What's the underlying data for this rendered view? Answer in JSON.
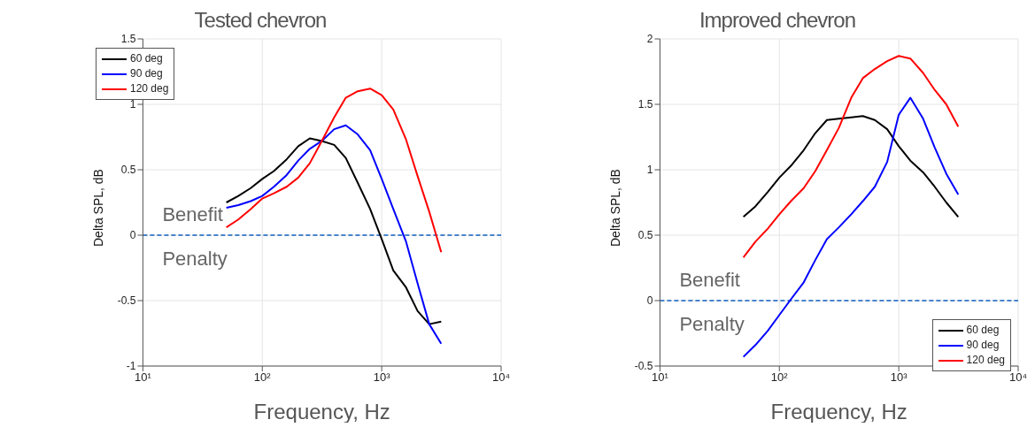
{
  "chart_data": [
    {
      "type": "line",
      "title": "Tested chevron",
      "xlabel": "Frequency, Hz",
      "ylabel": "Delta SPL, dB",
      "log": "x",
      "grid": true,
      "legend": "top left",
      "xlim": [
        10,
        10000
      ],
      "xticks": [
        {
          "value": 10,
          "label": "10¹"
        },
        {
          "value": 100,
          "label": "10²"
        },
        {
          "value": 1000,
          "label": "10³"
        },
        {
          "value": 10000,
          "label": "10⁴"
        }
      ],
      "ylim": [
        -1,
        1.5
      ],
      "yticks": [
        -1,
        -0.5,
        0,
        0.5,
        1,
        1.5
      ],
      "x": [
        50,
        63,
        80,
        100,
        125,
        160,
        200,
        250,
        315,
        400,
        500,
        630,
        800,
        1000,
        1250,
        1600,
        2000,
        2500,
        3150
      ],
      "series": [
        {
          "name": "60 deg",
          "color": "#000000",
          "values": [
            0.25,
            0.3,
            0.36,
            0.43,
            0.49,
            0.58,
            0.68,
            0.74,
            0.72,
            0.69,
            0.59,
            0.4,
            0.2,
            -0.03,
            -0.27,
            -0.4,
            -0.58,
            -0.68,
            -0.66
          ]
        },
        {
          "name": "90 deg",
          "color": "#0000ff",
          "values": [
            0.21,
            0.23,
            0.26,
            0.3,
            0.37,
            0.46,
            0.57,
            0.66,
            0.72,
            0.81,
            0.84,
            0.77,
            0.65,
            0.43,
            0.2,
            -0.05,
            -0.37,
            -0.68,
            -0.83
          ]
        },
        {
          "name": "120 deg",
          "color": "#ff0000",
          "values": [
            0.06,
            0.12,
            0.2,
            0.28,
            0.32,
            0.37,
            0.44,
            0.55,
            0.72,
            0.9,
            1.05,
            1.1,
            1.12,
            1.07,
            0.96,
            0.73,
            0.45,
            0.18,
            -0.13
          ]
        }
      ],
      "ref_lines": [
        {
          "axis": "y",
          "value": 0,
          "color": "#1060c0",
          "line_style": "dashed"
        }
      ],
      "annotations": [
        "Benefit",
        "Penalty"
      ]
    },
    {
      "type": "line",
      "title": "Improved chevron",
      "xlabel": "Frequency, Hz",
      "ylabel": "Delta SPL, dB",
      "log": "x",
      "grid": true,
      "legend": "bottom right",
      "xlim": [
        10,
        10000
      ],
      "xticks": [
        {
          "value": 10,
          "label": "10¹"
        },
        {
          "value": 100,
          "label": "10²"
        },
        {
          "value": 1000,
          "label": "10³"
        },
        {
          "value": 10000,
          "label": "10⁴"
        }
      ],
      "ylim": [
        -0.5,
        2
      ],
      "yticks": [
        -0.5,
        0,
        0.5,
        1,
        1.5,
        2
      ],
      "x": [
        50,
        63,
        80,
        100,
        125,
        160,
        200,
        250,
        315,
        400,
        500,
        630,
        800,
        1000,
        1250,
        1600,
        2000,
        2500,
        3150
      ],
      "series": [
        {
          "name": "60 deg",
          "color": "#000000",
          "values": [
            0.64,
            0.72,
            0.83,
            0.94,
            1.03,
            1.15,
            1.28,
            1.38,
            1.39,
            1.4,
            1.41,
            1.38,
            1.31,
            1.18,
            1.07,
            0.98,
            0.87,
            0.75,
            0.64
          ]
        },
        {
          "name": "90 deg",
          "color": "#0000ff",
          "values": [
            -0.43,
            -0.34,
            -0.23,
            -0.11,
            0.01,
            0.14,
            0.31,
            0.47,
            0.56,
            0.66,
            0.76,
            0.87,
            1.06,
            1.42,
            1.55,
            1.39,
            1.17,
            0.97,
            0.81
          ]
        },
        {
          "name": "120 deg",
          "color": "#ff0000",
          "values": [
            0.33,
            0.45,
            0.55,
            0.66,
            0.76,
            0.86,
            0.99,
            1.15,
            1.32,
            1.55,
            1.7,
            1.77,
            1.83,
            1.87,
            1.85,
            1.74,
            1.61,
            1.5,
            1.33
          ]
        }
      ],
      "ref_lines": [
        {
          "axis": "y",
          "value": 0,
          "color": "#1060c0",
          "line_style": "dashed"
        }
      ],
      "annotations": [
        "Benefit",
        "Penalty"
      ]
    }
  ]
}
